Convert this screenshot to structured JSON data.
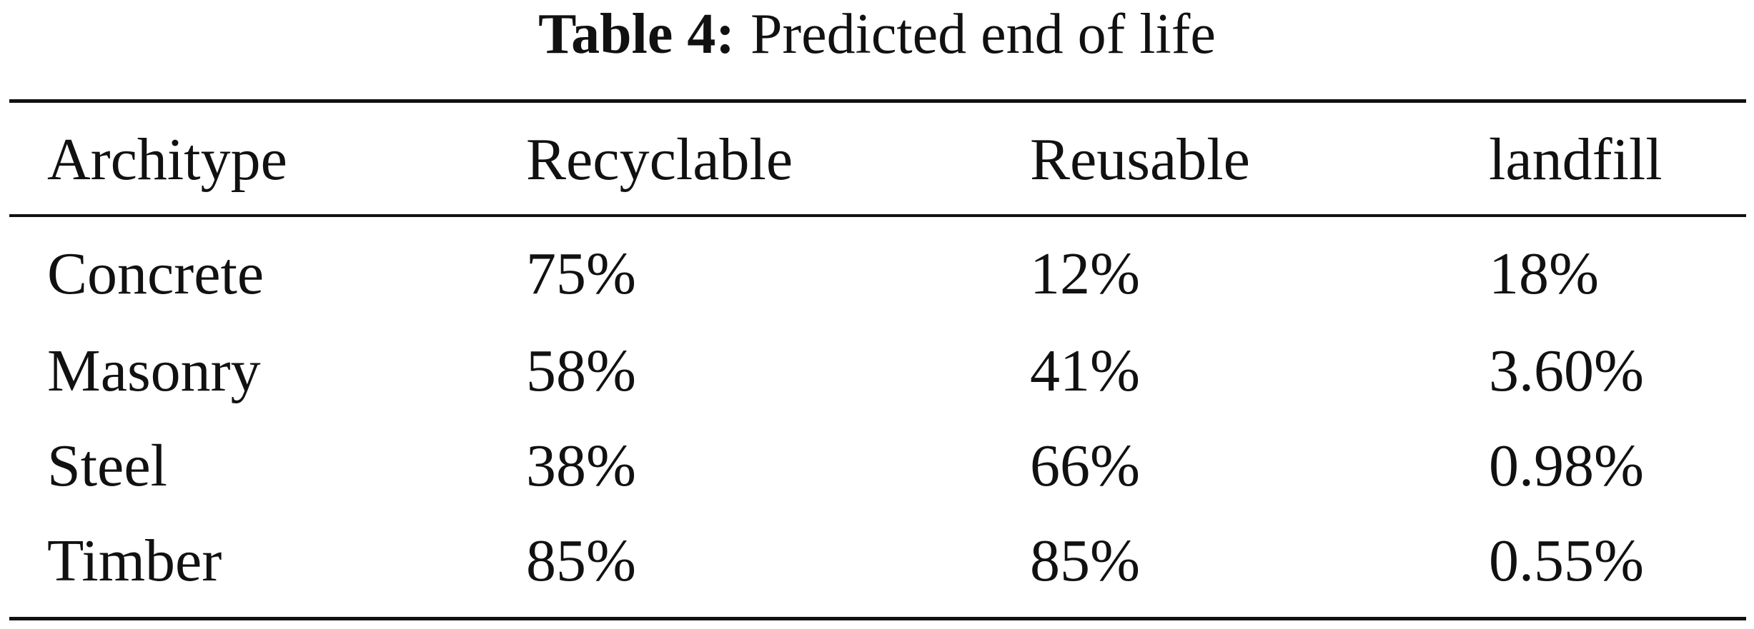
{
  "table": {
    "label": "Table 4:",
    "caption": "Predicted end of life",
    "header": [
      "Architype",
      "Recyclable",
      "Reusable",
      "landfill"
    ],
    "rows": [
      [
        "Concrete",
        "75%",
        "12%",
        "18%"
      ],
      [
        "Masonry",
        "58%",
        "41%",
        "3.60%"
      ],
      [
        "Steel",
        "38%",
        "66%",
        "0.98%"
      ],
      [
        "Timber",
        "85%",
        "85%",
        "0.55%"
      ]
    ]
  }
}
